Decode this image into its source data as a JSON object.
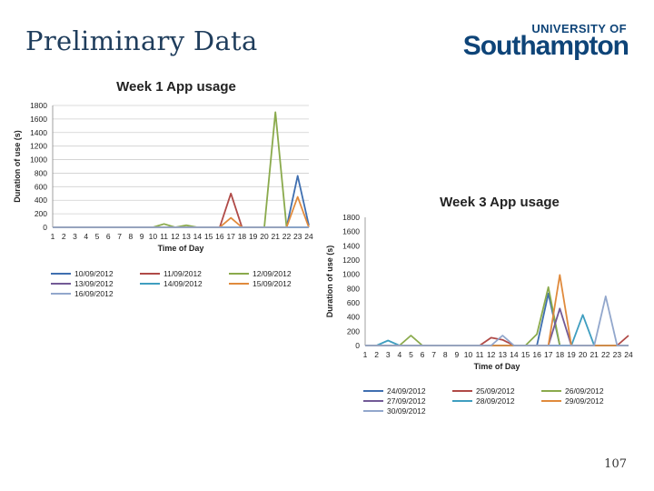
{
  "slide": {
    "title": "Preliminary Data",
    "page_number": "107"
  },
  "logo": {
    "line1": "UNIVERSITY OF",
    "line2": "Southampton"
  },
  "chart_data": [
    {
      "type": "line",
      "title": "Week 1 App usage",
      "xlabel": "Time of Day",
      "ylabel": "Duration of use (s)",
      "ylim": [
        0,
        1800
      ],
      "yticks": [
        0,
        200,
        400,
        600,
        800,
        1000,
        1200,
        1400,
        1600,
        1800
      ],
      "x": [
        1,
        2,
        3,
        4,
        5,
        6,
        7,
        8,
        9,
        10,
        11,
        12,
        13,
        14,
        15,
        16,
        17,
        18,
        19,
        20,
        21,
        22,
        23,
        24
      ],
      "grid": true,
      "legend_position": "bottom",
      "series": [
        {
          "name": "10/09/2012",
          "color": "#3f6fb0",
          "values": [
            0,
            0,
            0,
            0,
            0,
            0,
            0,
            0,
            0,
            0,
            0,
            0,
            0,
            0,
            0,
            0,
            0,
            0,
            0,
            0,
            0,
            0,
            760,
            30
          ]
        },
        {
          "name": "11/09/2012",
          "color": "#b04a47",
          "values": [
            0,
            0,
            0,
            0,
            0,
            0,
            0,
            0,
            0,
            0,
            0,
            0,
            0,
            0,
            0,
            0,
            500,
            0,
            0,
            0,
            0,
            0,
            0,
            0
          ]
        },
        {
          "name": "12/09/2012",
          "color": "#8aaa4c",
          "values": [
            0,
            0,
            0,
            0,
            0,
            0,
            0,
            0,
            0,
            0,
            50,
            0,
            30,
            0,
            0,
            0,
            0,
            0,
            0,
            0,
            1700,
            0,
            0,
            0
          ]
        },
        {
          "name": "13/09/2012",
          "color": "#735a96",
          "values": [
            0,
            0,
            0,
            0,
            0,
            0,
            0,
            0,
            0,
            0,
            0,
            0,
            0,
            0,
            0,
            0,
            0,
            0,
            0,
            0,
            0,
            0,
            0,
            0
          ]
        },
        {
          "name": "14/09/2012",
          "color": "#3f9ec0",
          "values": [
            0,
            0,
            0,
            0,
            0,
            0,
            0,
            0,
            0,
            0,
            0,
            0,
            0,
            0,
            0,
            0,
            0,
            0,
            0,
            0,
            0,
            0,
            0,
            0
          ]
        },
        {
          "name": "15/09/2012",
          "color": "#e08a3c",
          "values": [
            0,
            0,
            0,
            0,
            0,
            0,
            0,
            0,
            0,
            0,
            0,
            0,
            0,
            0,
            0,
            0,
            140,
            0,
            0,
            0,
            0,
            0,
            450,
            0
          ]
        },
        {
          "name": "16/09/2012",
          "color": "#92a7cc",
          "values": [
            0,
            0,
            0,
            0,
            0,
            0,
            0,
            0,
            0,
            0,
            0,
            0,
            0,
            0,
            0,
            0,
            0,
            0,
            0,
            0,
            0,
            0,
            0,
            0
          ]
        }
      ]
    },
    {
      "type": "line",
      "title": "Week 3 App usage",
      "xlabel": "Time of Day",
      "ylabel": "Duration of use (s)",
      "ylim": [
        0,
        1800
      ],
      "yticks": [
        0,
        200,
        400,
        600,
        800,
        1000,
        1200,
        1400,
        1600,
        1800
      ],
      "x": [
        1,
        2,
        3,
        4,
        5,
        6,
        7,
        8,
        9,
        10,
        11,
        12,
        13,
        14,
        15,
        16,
        17,
        18,
        19,
        20,
        21,
        22,
        23,
        24
      ],
      "grid": false,
      "legend_position": "bottom",
      "series": [
        {
          "name": "24/09/2012",
          "color": "#3f6fb0",
          "values": [
            0,
            0,
            0,
            0,
            0,
            0,
            0,
            0,
            0,
            0,
            0,
            0,
            0,
            0,
            0,
            0,
            730,
            0,
            0,
            0,
            0,
            0,
            0,
            0
          ]
        },
        {
          "name": "25/09/2012",
          "color": "#b04a47",
          "values": [
            0,
            0,
            0,
            0,
            0,
            0,
            0,
            0,
            0,
            0,
            0,
            110,
            80,
            0,
            0,
            0,
            0,
            0,
            0,
            0,
            0,
            0,
            0,
            140
          ]
        },
        {
          "name": "26/09/2012",
          "color": "#8aaa4c",
          "values": [
            0,
            0,
            0,
            0,
            140,
            0,
            0,
            0,
            0,
            0,
            0,
            0,
            0,
            0,
            0,
            160,
            820,
            0,
            0,
            0,
            0,
            0,
            0,
            0
          ]
        },
        {
          "name": "27/09/2012",
          "color": "#735a96",
          "values": [
            0,
            0,
            0,
            0,
            0,
            0,
            0,
            0,
            0,
            0,
            0,
            0,
            0,
            0,
            0,
            0,
            0,
            520,
            0,
            0,
            0,
            0,
            0,
            0
          ]
        },
        {
          "name": "28/09/2012",
          "color": "#3f9ec0",
          "values": [
            0,
            0,
            70,
            0,
            0,
            0,
            0,
            0,
            0,
            0,
            0,
            0,
            0,
            0,
            0,
            0,
            0,
            0,
            0,
            430,
            0,
            0,
            0,
            0
          ]
        },
        {
          "name": "29/09/2012",
          "color": "#e08a3c",
          "values": [
            0,
            0,
            0,
            0,
            0,
            0,
            0,
            0,
            0,
            0,
            0,
            0,
            0,
            0,
            0,
            0,
            0,
            990,
            0,
            0,
            0,
            0,
            0,
            0
          ]
        },
        {
          "name": "30/09/2012",
          "color": "#92a7cc",
          "values": [
            0,
            0,
            0,
            0,
            0,
            0,
            0,
            0,
            0,
            0,
            0,
            0,
            140,
            0,
            0,
            0,
            0,
            0,
            0,
            0,
            0,
            690,
            0,
            0
          ]
        }
      ]
    }
  ]
}
